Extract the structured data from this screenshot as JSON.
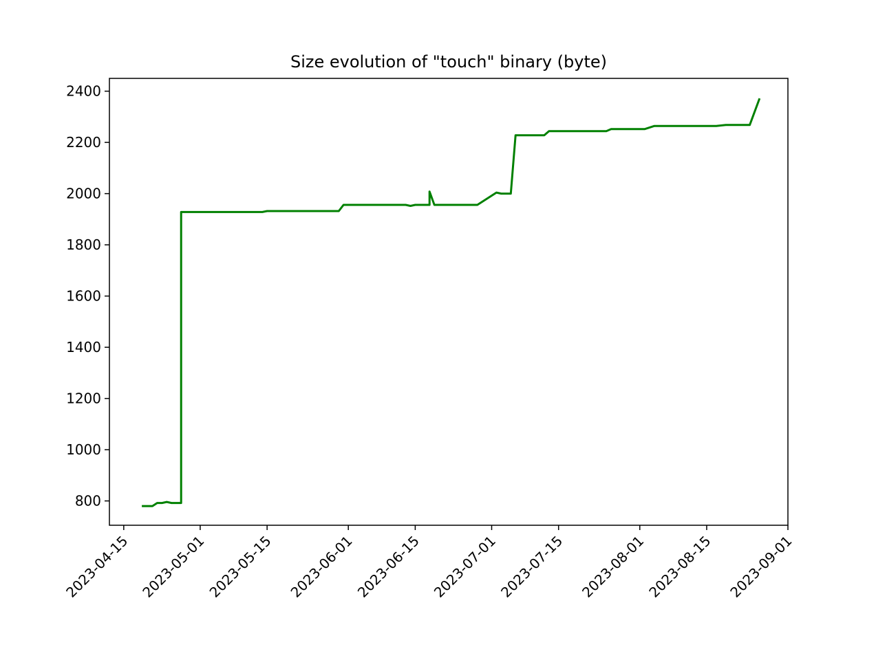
{
  "chart_data": {
    "type": "line",
    "title": "Size evolution of \"touch\" binary (byte)",
    "xlabel": "",
    "ylabel": "",
    "grid": false,
    "x_axis": {
      "type": "date",
      "range": [
        "2023-04-12",
        "2023-09-01"
      ],
      "tick_labels": [
        "2023-04-15",
        "2023-05-01",
        "2023-05-15",
        "2023-06-01",
        "2023-06-15",
        "2023-07-01",
        "2023-07-15",
        "2023-08-01",
        "2023-08-15",
        "2023-09-01"
      ]
    },
    "y_axis": {
      "range": [
        705,
        2450
      ],
      "tick_labels": [
        "800",
        "1000",
        "1200",
        "1400",
        "1600",
        "1800",
        "2000",
        "2200",
        "2400"
      ]
    },
    "series": [
      {
        "color": "#008000",
        "points": [
          {
            "x": "2023-04-19",
            "y": 780
          },
          {
            "x": "2023-04-21",
            "y": 780
          },
          {
            "x": "2023-04-22",
            "y": 792
          },
          {
            "x": "2023-04-23",
            "y": 792
          },
          {
            "x": "2023-04-24",
            "y": 796
          },
          {
            "x": "2023-04-25",
            "y": 792
          },
          {
            "x": "2023-04-27",
            "y": 792
          },
          {
            "x": "2023-04-27",
            "y": 1928
          },
          {
            "x": "2023-05-02",
            "y": 1928
          },
          {
            "x": "2023-05-14",
            "y": 1928
          },
          {
            "x": "2023-05-15",
            "y": 1932
          },
          {
            "x": "2023-05-30",
            "y": 1932
          },
          {
            "x": "2023-05-31",
            "y": 1956
          },
          {
            "x": "2023-06-13",
            "y": 1956
          },
          {
            "x": "2023-06-14",
            "y": 1952
          },
          {
            "x": "2023-06-15",
            "y": 1956
          },
          {
            "x": "2023-06-18",
            "y": 1956
          },
          {
            "x": "2023-06-18",
            "y": 2008
          },
          {
            "x": "2023-06-19",
            "y": 1956
          },
          {
            "x": "2023-06-28",
            "y": 1956
          },
          {
            "x": "2023-07-02",
            "y": 2004
          },
          {
            "x": "2023-07-03",
            "y": 2000
          },
          {
            "x": "2023-07-05",
            "y": 2000
          },
          {
            "x": "2023-07-06",
            "y": 2228
          },
          {
            "x": "2023-07-12",
            "y": 2228
          },
          {
            "x": "2023-07-13",
            "y": 2244
          },
          {
            "x": "2023-07-25",
            "y": 2244
          },
          {
            "x": "2023-07-26",
            "y": 2252
          },
          {
            "x": "2023-08-02",
            "y": 2252
          },
          {
            "x": "2023-08-04",
            "y": 2264
          },
          {
            "x": "2023-08-17",
            "y": 2264
          },
          {
            "x": "2023-08-19",
            "y": 2268
          },
          {
            "x": "2023-08-24",
            "y": 2268
          },
          {
            "x": "2023-08-26",
            "y": 2368
          }
        ]
      }
    ]
  }
}
